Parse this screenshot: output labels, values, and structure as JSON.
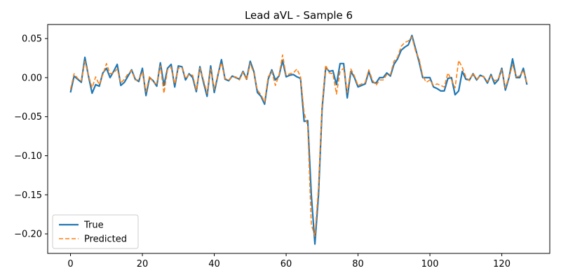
{
  "chart_data": {
    "type": "line",
    "title": "Lead aVL - Sample 6",
    "xlabel": "",
    "ylabel": "",
    "xlim": [
      -6.35,
      133.35
    ],
    "ylim": [
      -0.225,
      0.068
    ],
    "x_ticks": [
      0,
      20,
      40,
      60,
      80,
      100,
      120
    ],
    "x_tick_labels": [
      "0",
      "20",
      "40",
      "60",
      "80",
      "100",
      "120"
    ],
    "y_ticks": [
      0.05,
      0.0,
      -0.05,
      -0.1,
      -0.15,
      -0.2
    ],
    "y_tick_labels": [
      "0.05",
      "0.00",
      "−0.05",
      "−0.10",
      "−0.15",
      "−0.20"
    ],
    "grid": false,
    "legend_position": "lower-left",
    "series": [
      {
        "name": "True",
        "color": "#1f77b4",
        "style": "solid",
        "values": [
          -0.019,
          0.002,
          -0.002,
          -0.006,
          0.026,
          0.002,
          -0.02,
          -0.009,
          -0.011,
          0.006,
          0.012,
          0.0,
          0.008,
          0.017,
          -0.01,
          -0.006,
          0.002,
          0.01,
          -0.002,
          -0.005,
          0.012,
          -0.023,
          0.0,
          -0.004,
          -0.011,
          0.019,
          -0.01,
          0.012,
          0.017,
          -0.012,
          0.015,
          0.014,
          -0.003,
          0.005,
          0.0,
          -0.018,
          0.014,
          -0.006,
          -0.024,
          0.015,
          -0.019,
          0.003,
          0.023,
          -0.002,
          -0.004,
          0.002,
          0.0,
          -0.002,
          0.008,
          -0.002,
          0.021,
          0.008,
          -0.019,
          -0.024,
          -0.034,
          -0.002,
          0.01,
          -0.003,
          0.002,
          0.022,
          0.001,
          0.003,
          0.004,
          0.001,
          -0.001,
          -0.056,
          -0.055,
          -0.15,
          -0.213,
          -0.15,
          -0.04,
          0.013,
          0.008,
          0.009,
          -0.009,
          0.018,
          0.018,
          -0.026,
          0.008,
          0.0,
          -0.012,
          -0.01,
          -0.008,
          0.008,
          -0.006,
          -0.007,
          0.0,
          0.0,
          0.006,
          0.002,
          0.017,
          0.024,
          0.035,
          0.039,
          0.042,
          0.054,
          0.037,
          0.02,
          0.0,
          0.0,
          0.0,
          -0.012,
          -0.014,
          -0.017,
          -0.017,
          -0.001,
          0.0,
          -0.022,
          -0.017,
          0.008,
          -0.002,
          -0.003,
          0.005,
          -0.003,
          0.003,
          0.001,
          -0.007,
          0.004,
          -0.008,
          -0.003,
          0.012,
          -0.016,
          0.0,
          0.024,
          0.0,
          0.0,
          0.012,
          -0.009
        ]
      },
      {
        "name": "Predicted",
        "color": "#ff7f0e",
        "style": "dashed",
        "values": [
          -0.015,
          0.005,
          -0.001,
          -0.004,
          0.021,
          0.003,
          -0.013,
          0.001,
          -0.009,
          0.004,
          0.018,
          0.005,
          0.006,
          0.011,
          -0.007,
          -0.002,
          0.005,
          0.009,
          -0.003,
          -0.003,
          0.007,
          -0.018,
          0.002,
          -0.006,
          -0.008,
          0.015,
          -0.02,
          0.01,
          0.013,
          -0.008,
          0.012,
          0.013,
          -0.001,
          0.004,
          0.003,
          -0.016,
          0.012,
          -0.003,
          -0.02,
          0.011,
          -0.015,
          0.004,
          0.019,
          -0.001,
          -0.003,
          0.001,
          0.001,
          -0.003,
          0.007,
          -0.003,
          0.018,
          0.006,
          -0.016,
          -0.022,
          -0.031,
          0.001,
          0.008,
          -0.01,
          0.003,
          0.029,
          0.003,
          0.005,
          0.006,
          0.011,
          0.001,
          -0.045,
          -0.062,
          -0.188,
          -0.203,
          -0.14,
          -0.035,
          0.016,
          0.006,
          0.005,
          -0.021,
          0.008,
          0.012,
          -0.019,
          0.011,
          0.002,
          -0.01,
          -0.008,
          -0.006,
          0.01,
          -0.003,
          -0.01,
          -0.003,
          -0.003,
          0.004,
          0.004,
          0.021,
          0.026,
          0.04,
          0.045,
          0.047,
          0.052,
          0.034,
          0.024,
          0.002,
          -0.006,
          -0.003,
          -0.01,
          -0.008,
          -0.01,
          -0.012,
          0.006,
          -0.003,
          -0.013,
          0.022,
          0.013,
          0.001,
          -0.004,
          0.006,
          -0.002,
          0.002,
          0.001,
          -0.005,
          0.002,
          -0.004,
          -0.002,
          0.01,
          -0.013,
          0.001,
          0.016,
          0.001,
          0.002,
          0.009,
          -0.007
        ]
      }
    ]
  }
}
